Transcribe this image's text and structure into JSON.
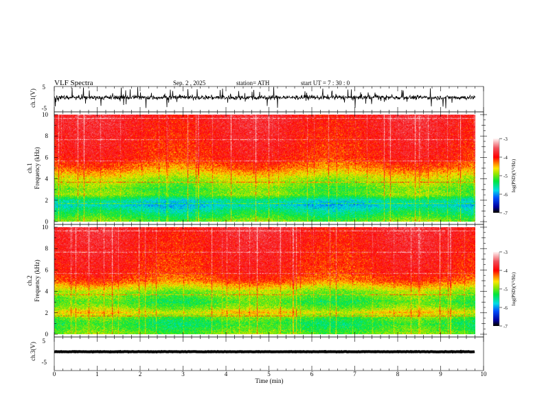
{
  "header": {
    "title": "VLF  Spectra",
    "date": "Sep. 2  , 2025",
    "station": "station= ATH",
    "start": "start  UT  =   7  : 30 : 0"
  },
  "colors": {
    "axis": "#000000",
    "trace": "#000000"
  },
  "chart_data": [
    {
      "type": "line",
      "name": "ch1 waveform",
      "ylabel": "ch.1(V)",
      "ylim": [
        -5,
        5
      ],
      "yticks": [
        "5",
        "-5"
      ],
      "description_values": {
        "mean": 0.0,
        "noise_amplitude": 1.0,
        "spike_amplitude": 5
      }
    },
    {
      "type": "heatmap",
      "name": "ch1 spectrogram",
      "ylabel": "ch.1\nFrequency  (kHz)",
      "ylabel_lines": [
        "ch.1",
        "Frequency  (kHz)"
      ],
      "ylim": [
        0,
        10
      ],
      "yticks": [
        "0",
        "2",
        "4",
        "6",
        "8",
        "10"
      ],
      "xlim": [
        0,
        10
      ],
      "data_end_min": 9.8,
      "freq_khz": [
        0,
        0.5,
        1,
        1.5,
        2,
        2.5,
        3,
        4,
        5,
        6,
        8,
        10
      ],
      "mean_log_psd": [
        -5.0,
        -5.3,
        -5.5,
        -5.8,
        -5.6,
        -5.0,
        -5.1,
        -4.8,
        -4.3,
        -4.0,
        -3.9,
        -3.8
      ],
      "colorbar": {
        "label": "log(PSD)(V²/Hz)",
        "range": [
          -7,
          -3
        ],
        "ticks": [
          "-3",
          "-4",
          "-5",
          "-6",
          "-7"
        ]
      }
    },
    {
      "type": "heatmap",
      "name": "ch2 spectrogram",
      "ylabel_lines": [
        "ch.2",
        "Frequency  (kHz)"
      ],
      "ylim": [
        0,
        10
      ],
      "yticks": [
        "0",
        "2",
        "4",
        "6",
        "8",
        "10"
      ],
      "xlim": [
        0,
        10
      ],
      "data_end_min": 9.8,
      "freq_khz": [
        0,
        0.5,
        1,
        1.5,
        2,
        2.5,
        3,
        4,
        5,
        6,
        8,
        10
      ],
      "mean_log_psd": [
        -5.0,
        -5.2,
        -5.3,
        -5.1,
        -4.6,
        -5.0,
        -5.2,
        -4.9,
        -4.2,
        -4.0,
        -3.9,
        -3.8
      ],
      "colorbar": {
        "label": "log(PSD)(V²/Hz)",
        "range": [
          -7,
          -3
        ],
        "ticks": [
          "-3",
          "-4",
          "-5",
          "-6",
          "-7"
        ]
      }
    },
    {
      "type": "line",
      "name": "ch3 waveform",
      "ylabel": "ch.3(V)",
      "ylim": [
        -5,
        5
      ],
      "yticks": [
        "5",
        "-5"
      ],
      "description_values": {
        "mean": 0.0,
        "noise_amplitude": 0.1
      }
    }
  ],
  "xaxis": {
    "label": "Time  (min)",
    "ticks": [
      "0",
      "1",
      "2",
      "3",
      "4",
      "5",
      "6",
      "7",
      "8",
      "9",
      "10"
    ],
    "range": [
      0,
      10
    ]
  }
}
